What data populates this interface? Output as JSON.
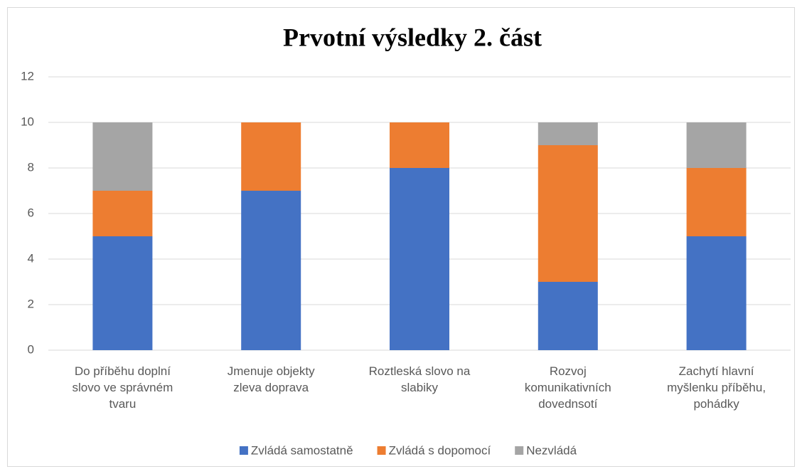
{
  "chart_data": {
    "type": "stacked_bar",
    "title": "Prvotní výsledky 2. část",
    "categories": [
      "Do příběhu doplní slovo ve správném tvaru",
      "Jmenuje objekty zleva doprava",
      "Roztleská slovo na slabiky",
      "Rozvoj komunikativních dovednsotí",
      "Zachytí hlavní myšlenku příběhu, pohádky"
    ],
    "series": [
      {
        "name": "Zvládá samostatně",
        "color": "#4472c4",
        "values": [
          5,
          7,
          8,
          3,
          5
        ]
      },
      {
        "name": "Zvládá s dopomocí",
        "color": "#ed7d31",
        "values": [
          2,
          3,
          2,
          6,
          3
        ]
      },
      {
        "name": "Nezvládá",
        "color": "#a5a5a5",
        "values": [
          3,
          0,
          0,
          1,
          2
        ]
      }
    ],
    "ylim": [
      0,
      12
    ],
    "yticks": [
      0,
      2,
      4,
      6,
      8,
      10,
      12
    ],
    "grid": true,
    "legend": "bottom"
  }
}
